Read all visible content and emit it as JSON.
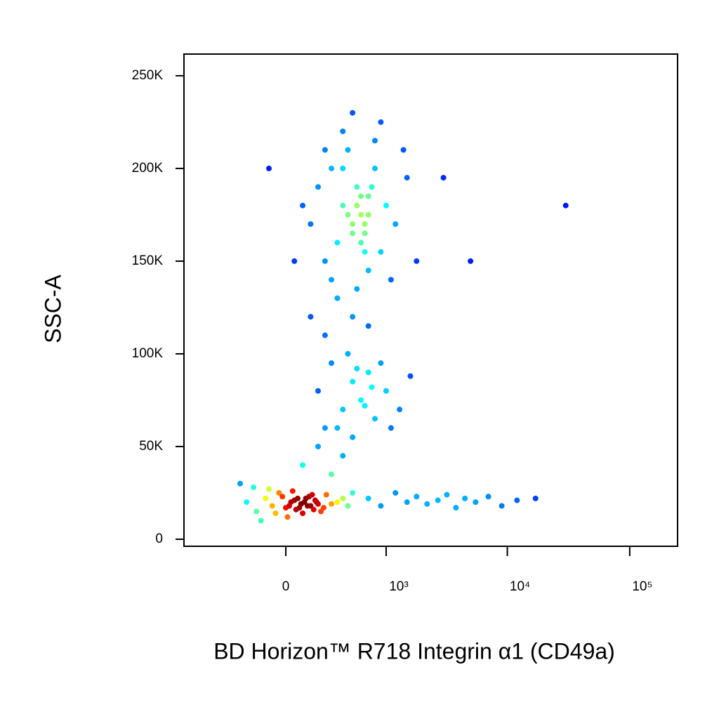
{
  "chart_data": {
    "type": "scatter",
    "x_label": "BD Horizon™ R718 Integrin α1 (CD49a)",
    "y_label": "SSC-A",
    "xscale": "biexponential",
    "colormap": "jet",
    "xlim": [
      -1030,
      246000
    ],
    "xticks": [
      0,
      {
        "value": 1000,
        "label": "10³"
      },
      {
        "value": 10000,
        "label": "10⁴"
      },
      {
        "value": 100000,
        "label": "10⁵"
      }
    ],
    "ylim": [
      -3800,
      261700
    ],
    "yticks": [
      0,
      {
        "value": 50000,
        "label": "50K"
      },
      {
        "value": 100000,
        "label": "100K"
      },
      {
        "value": 150000,
        "label": "150K"
      },
      {
        "value": 200000,
        "label": "200K"
      },
      {
        "value": 250000,
        "label": "250K"
      }
    ],
    "series": [
      {
        "x": [
          -250,
          -180,
          -120,
          -80,
          -40,
          0,
          30,
          60,
          90,
          120,
          150,
          180,
          220,
          260,
          300,
          350,
          -60,
          -20,
          20,
          50,
          80,
          110,
          140,
          170,
          200,
          -100,
          10,
          40,
          70,
          100,
          130,
          160,
          190,
          240,
          -150,
          -200,
          400,
          450,
          500,
          -300,
          700,
          900,
          1200,
          1500,
          1800,
          2200,
          2700,
          3200,
          3800,
          4500,
          5500,
          7000,
          9000,
          12000,
          17000,
          200,
          300,
          400,
          500,
          600,
          700,
          800,
          1000,
          1300,
          1600,
          350,
          450,
          550,
          650,
          750,
          900,
          1100,
          250,
          500,
          700,
          100,
          200,
          300,
          400,
          500,
          150,
          350,
          250,
          150,
          200,
          250,
          300,
          350,
          400,
          450,
          500,
          550,
          600,
          650,
          700,
          800,
          900,
          1000,
          1200,
          1500,
          1800,
          300,
          400,
          500,
          600,
          700,
          800,
          450,
          550,
          650,
          750,
          350,
          500,
          600,
          700,
          900,
          250,
          400,
          550,
          650,
          1100,
          1400,
          100,
          50,
          -100,
          3000,
          5000,
          30000
        ],
        "values": [
          20000,
          15000,
          22000,
          18000,
          25000,
          17000,
          20000,
          16000,
          19000,
          22000,
          18000,
          21000,
          15000,
          24000,
          19000,
          20000,
          14000,
          23000,
          18000,
          21000,
          17000,
          20000,
          23000,
          16000,
          19000,
          27000,
          12000,
          26000,
          22000,
          14000,
          18000,
          24000,
          20000,
          17000,
          10000,
          28000,
          22000,
          18000,
          25000,
          30000,
          22000,
          18000,
          25000,
          20000,
          23000,
          19000,
          21000,
          24000,
          17000,
          22000,
          20000,
          23000,
          18000,
          21000,
          22000,
          80000,
          95000,
          70000,
          85000,
          75000,
          90000,
          65000,
          80000,
          70000,
          88000,
          60000,
          100000,
          92000,
          72000,
          82000,
          95000,
          60000,
          110000,
          120000,
          115000,
          40000,
          50000,
          35000,
          45000,
          55000,
          120000,
          130000,
          60000,
          170000,
          190000,
          150000,
          200000,
          160000,
          180000,
          210000,
          170000,
          190000,
          175000,
          165000,
          185000,
          200000,
          155000,
          180000,
          170000,
          195000,
          150000,
          140000,
          220000,
          230000,
          160000,
          145000,
          215000,
          175000,
          180000,
          170000,
          190000,
          130000,
          165000,
          185000,
          175000,
          225000,
          210000,
          200000,
          135000,
          155000,
          140000,
          210000,
          180000,
          150000,
          200000,
          195000,
          150000,
          180000
        ]
      }
    ]
  }
}
